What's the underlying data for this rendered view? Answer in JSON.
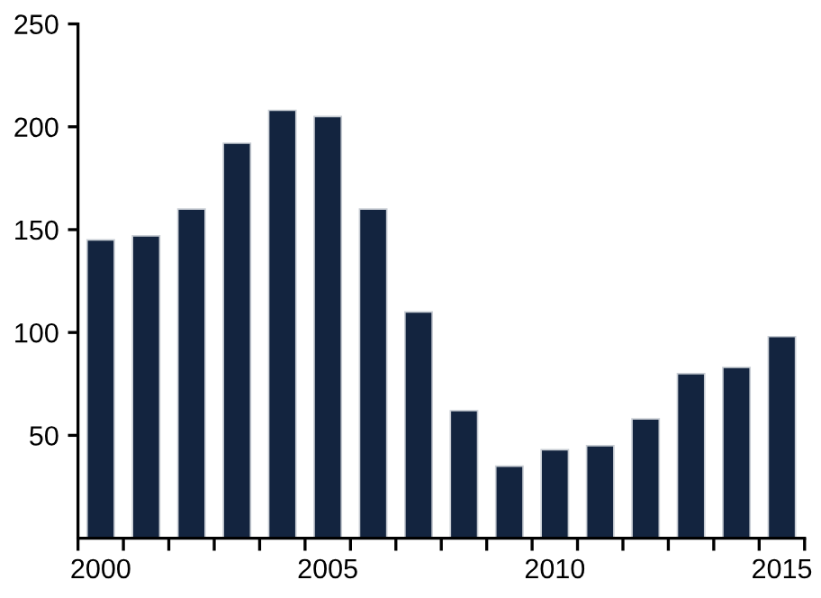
{
  "chart_data": {
    "type": "bar",
    "categories": [
      "2000",
      null,
      null,
      null,
      null,
      "2005",
      null,
      null,
      null,
      null,
      "2010",
      null,
      null,
      null,
      null,
      "2015"
    ],
    "values": [
      145,
      147,
      160,
      192,
      208,
      205,
      160,
      110,
      62,
      35,
      43,
      45,
      58,
      80,
      83,
      98
    ],
    "color": "#13243f",
    "ylim": [
      0,
      250
    ],
    "yticks": [
      50,
      100,
      150,
      200,
      250
    ],
    "grid": false
  }
}
